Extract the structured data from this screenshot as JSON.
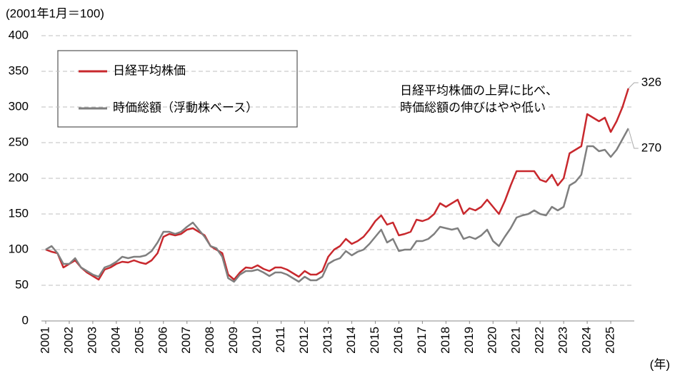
{
  "chart_data": {
    "type": "line",
    "y_unit_label": "(2001年1月＝100)",
    "x_unit_label": "(年)",
    "annotation": [
      "日経平均株価の上昇に比べ、",
      "時価総額の伸びはやや低い"
    ],
    "x": [
      2001,
      2001.25,
      2001.5,
      2001.75,
      2002,
      2002.25,
      2002.5,
      2002.75,
      2003,
      2003.25,
      2003.5,
      2003.75,
      2004,
      2004.25,
      2004.5,
      2004.75,
      2005,
      2005.25,
      2005.5,
      2005.75,
      2006,
      2006.25,
      2006.5,
      2006.75,
      2007,
      2007.25,
      2007.5,
      2007.75,
      2008,
      2008.25,
      2008.5,
      2008.75,
      2009,
      2009.25,
      2009.5,
      2009.75,
      2010,
      2010.25,
      2010.5,
      2010.75,
      2011,
      2011.25,
      2011.5,
      2011.75,
      2012,
      2012.25,
      2012.5,
      2012.75,
      2013,
      2013.25,
      2013.5,
      2013.75,
      2014,
      2014.25,
      2014.5,
      2014.75,
      2015,
      2015.25,
      2015.5,
      2015.75,
      2016,
      2016.25,
      2016.5,
      2016.75,
      2017,
      2017.25,
      2017.5,
      2017.75,
      2018,
      2018.25,
      2018.5,
      2018.75,
      2019,
      2019.25,
      2019.5,
      2019.75,
      2020,
      2020.25,
      2020.5,
      2020.75,
      2021,
      2021.25,
      2021.5,
      2021.75,
      2022,
      2022.25,
      2022.5,
      2022.75,
      2023,
      2023.25,
      2023.5,
      2023.75,
      2024,
      2024.25,
      2024.5,
      2024.75,
      2025,
      2025.25,
      2025.5,
      2025.75
    ],
    "series": [
      {
        "name": "日経平均株価",
        "color": "#c8282d",
        "values": [
          100,
          97,
          95,
          75,
          80,
          85,
          75,
          68,
          63,
          58,
          72,
          75,
          80,
          83,
          82,
          85,
          82,
          80,
          85,
          95,
          118,
          122,
          120,
          122,
          128,
          130,
          125,
          120,
          105,
          100,
          95,
          65,
          58,
          68,
          75,
          74,
          78,
          73,
          70,
          75,
          75,
          72,
          67,
          62,
          70,
          65,
          65,
          70,
          90,
          100,
          105,
          115,
          108,
          112,
          118,
          128,
          140,
          148,
          135,
          138,
          120,
          122,
          125,
          142,
          140,
          143,
          150,
          165,
          160,
          165,
          170,
          150,
          158,
          155,
          160,
          170,
          160,
          150,
          168,
          190,
          210,
          210,
          210,
          210,
          198,
          195,
          205,
          190,
          200,
          235,
          240,
          245,
          290,
          285,
          280,
          285,
          265,
          280,
          300,
          326
        ]
      },
      {
        "name": "時価総額（浮動株ベース）",
        "color": "#7f7f7f",
        "values": [
          100,
          105,
          95,
          80,
          80,
          88,
          75,
          70,
          65,
          62,
          75,
          78,
          83,
          90,
          88,
          90,
          90,
          92,
          98,
          110,
          125,
          125,
          122,
          125,
          132,
          138,
          128,
          118,
          105,
          102,
          90,
          60,
          55,
          65,
          70,
          70,
          72,
          68,
          63,
          68,
          68,
          65,
          60,
          55,
          62,
          57,
          57,
          62,
          80,
          85,
          88,
          98,
          92,
          97,
          100,
          108,
          118,
          128,
          110,
          115,
          98,
          100,
          100,
          112,
          112,
          115,
          122,
          132,
          130,
          128,
          130,
          115,
          118,
          115,
          120,
          128,
          112,
          105,
          118,
          130,
          145,
          148,
          150,
          155,
          150,
          148,
          160,
          155,
          160,
          190,
          195,
          205,
          245,
          245,
          238,
          240,
          230,
          240,
          255,
          270
        ]
      }
    ],
    "xlim": [
      2001,
      2026
    ],
    "xticks": [
      2001,
      2002,
      2003,
      2004,
      2005,
      2006,
      2007,
      2008,
      2009,
      2010,
      2011,
      2012,
      2013,
      2014,
      2015,
      2016,
      2017,
      2018,
      2019,
      2020,
      2021,
      2022,
      2023,
      2024,
      2025
    ],
    "ylim": [
      0,
      400
    ],
    "yticks": [
      0,
      50,
      100,
      150,
      200,
      250,
      300,
      350,
      400
    ],
    "grid": true
  }
}
